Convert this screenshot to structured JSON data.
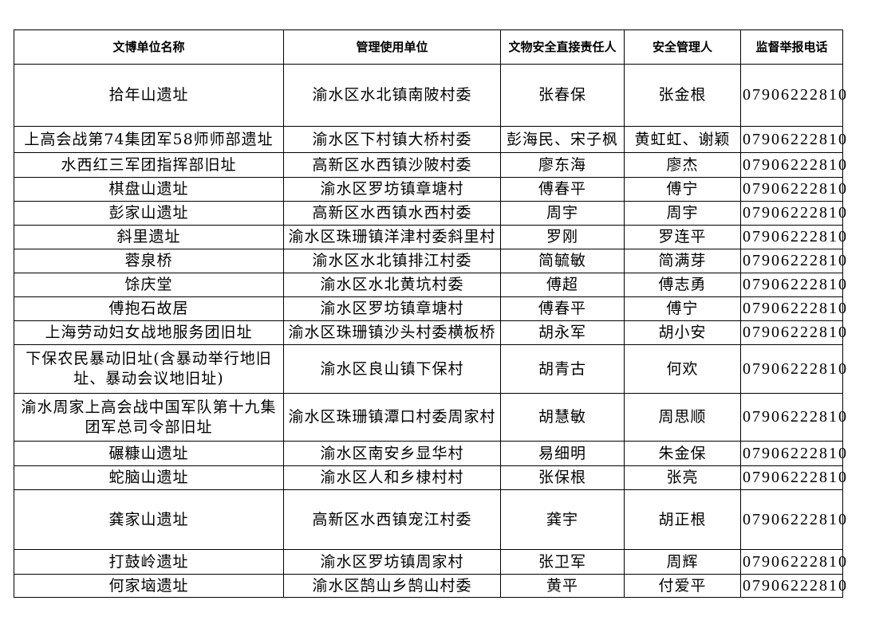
{
  "table": {
    "headers": [
      "文博单位名称",
      "管理使用单位",
      "文物安全直接责任人",
      "安全管理人",
      "监督举报电话"
    ],
    "rows": [
      {
        "name": "拾年山遗址",
        "unit": "渝水区水北镇南陂村委",
        "direct": "张春保",
        "manager": "张金根",
        "phone": "07906222810"
      },
      {
        "name": "上高会战第74集团军58师师部遗址",
        "unit": "渝水区下村镇大桥村委",
        "direct": "彭海民、宋子枫",
        "manager": "黄虹虹、谢颖",
        "phone": "07906222810"
      },
      {
        "name": "水西红三军团指挥部旧址",
        "unit": "高新区水西镇沙陂村委",
        "direct": "廖东海",
        "manager": "廖杰",
        "phone": "07906222810"
      },
      {
        "name": "棋盘山遗址",
        "unit": "渝水区罗坊镇章塘村",
        "direct": "傅春平",
        "manager": "傅宁",
        "phone": "07906222810"
      },
      {
        "name": "彭家山遗址",
        "unit": "高新区水西镇水西村委",
        "direct": "周宇",
        "manager": "周宇",
        "phone": "07906222810"
      },
      {
        "name": "斜里遗址",
        "unit": "渝水区珠珊镇洋津村委斜里村",
        "direct": "罗刚",
        "manager": "罗连平",
        "phone": "07906222810"
      },
      {
        "name": "蓉泉桥",
        "unit": "渝水区水北镇排江村委",
        "direct": "简毓敏",
        "manager": "简满芽",
        "phone": "07906222810"
      },
      {
        "name": "馀庆堂",
        "unit": "渝水区水北黄坑村委",
        "direct": "傅超",
        "manager": "傅志勇",
        "phone": "07906222810"
      },
      {
        "name": "傅抱石故居",
        "unit": "渝水区罗坊镇章塘村",
        "direct": "傅春平",
        "manager": "傅宁",
        "phone": "07906222810"
      },
      {
        "name": "上海劳动妇女战地服务团旧址",
        "unit": "渝水区珠珊镇沙头村委横板桥",
        "direct": "胡永军",
        "manager": "胡小安",
        "phone": "07906222810"
      },
      {
        "name": "下保农民暴动旧址(含暴动举行地旧址、暴动会议地旧址)",
        "unit": "渝水区良山镇下保村",
        "direct": "胡青古",
        "manager": "何欢",
        "phone": "07906222810"
      },
      {
        "name": "渝水周家上高会战中国军队第十九集团军总司令部旧址",
        "unit": "渝水区珠珊镇潭口村委周家村",
        "direct": "胡慧敏",
        "manager": "周思顺",
        "phone": "07906222810"
      },
      {
        "name": "碾糠山遗址",
        "unit": "渝水区南安乡显华村",
        "direct": "易细明",
        "manager": "朱金保",
        "phone": "07906222810"
      },
      {
        "name": "蛇脑山遗址",
        "unit": "渝水区人和乡棣村村",
        "direct": "张保根",
        "manager": "张亮",
        "phone": "07906222810"
      },
      {
        "name": "龚家山遗址",
        "unit": "高新区水西镇宠江村委",
        "direct": "龚宇",
        "manager": "胡正根",
        "phone": "07906222810"
      },
      {
        "name": "打鼓岭遗址",
        "unit": "渝水区罗坊镇周家村",
        "direct": "张卫军",
        "manager": "周辉",
        "phone": "07906222810"
      },
      {
        "name": "何家垴遗址",
        "unit": "渝水区鹄山乡鹄山村委",
        "direct": "黄平",
        "manager": "付爱平",
        "phone": "07906222810"
      }
    ]
  }
}
